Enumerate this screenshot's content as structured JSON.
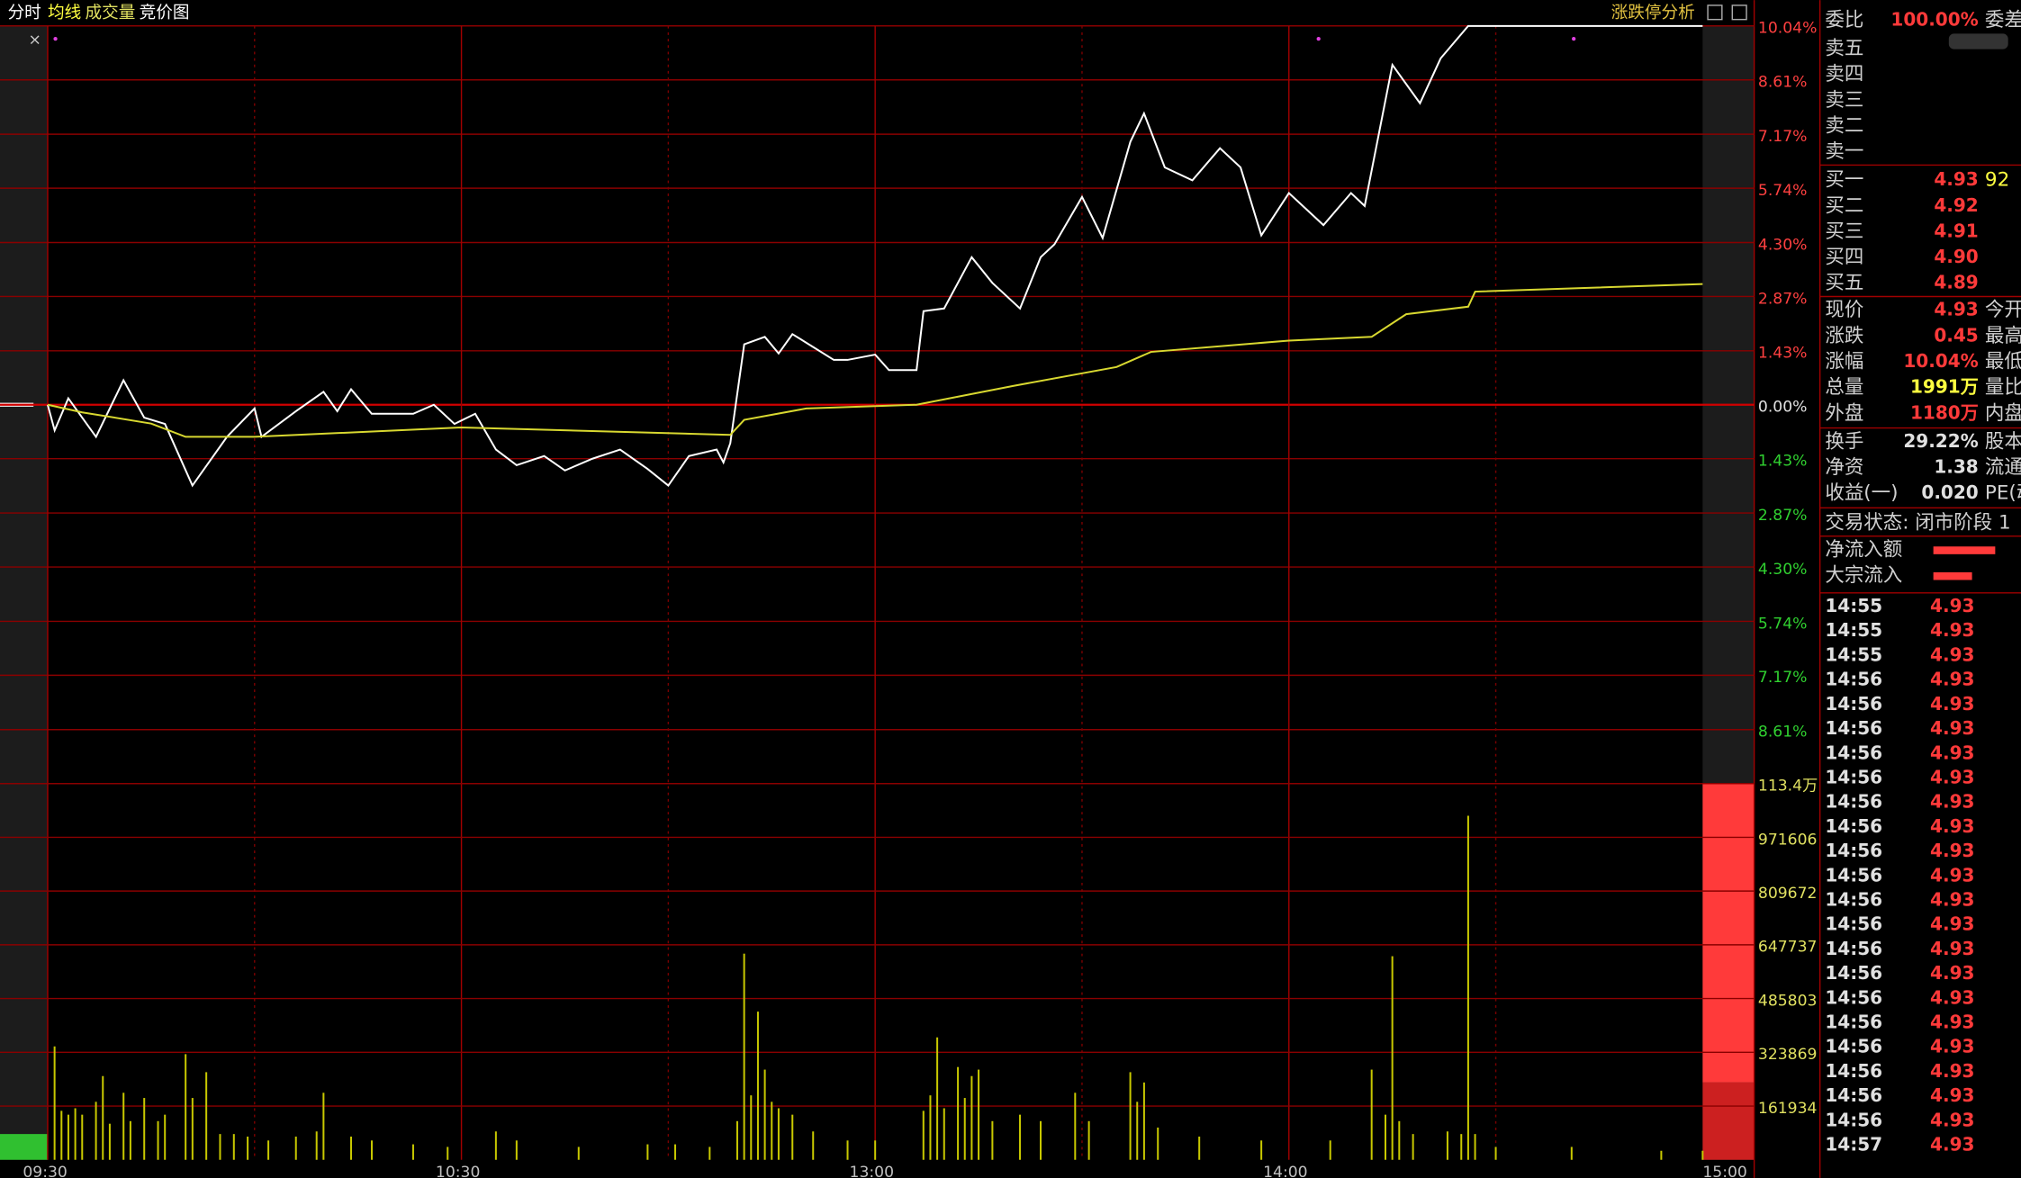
{
  "header": {
    "tabs": [
      "分时",
      "均线",
      "成交量",
      "竞价图"
    ],
    "close": "×",
    "analysis": "涨跌停分析"
  },
  "chart_data": [
    {
      "type": "line",
      "xlim": [
        0,
        240
      ],
      "xticks": [
        {
          "value": 0,
          "label": "09:30"
        },
        {
          "value": 60,
          "label": "10:30"
        },
        {
          "value": 120,
          "label": "13:00"
        },
        {
          "value": 180,
          "label": "14:00"
        },
        {
          "value": 240,
          "label": "15:00"
        }
      ],
      "ylim": [
        -10.04,
        10.04
      ],
      "yticks": [
        {
          "value": 10.04,
          "label": "10.04%"
        },
        {
          "value": 8.61,
          "label": "8.61%"
        },
        {
          "value": 7.17,
          "label": "7.17%"
        },
        {
          "value": 5.74,
          "label": "5.74%"
        },
        {
          "value": 4.3,
          "label": "4.30%"
        },
        {
          "value": 2.87,
          "label": "2.87%"
        },
        {
          "value": 1.43,
          "label": "1.43%"
        },
        {
          "value": 0,
          "label": "0.00%"
        },
        {
          "value": -1.43,
          "label": "1.43%"
        },
        {
          "value": -2.87,
          "label": "2.87%"
        },
        {
          "value": -4.3,
          "label": "4.30%"
        },
        {
          "value": -5.74,
          "label": "5.74%"
        },
        {
          "value": -7.17,
          "label": "7.17%"
        },
        {
          "value": -8.61,
          "label": "8.61%"
        }
      ],
      "grid": true,
      "series": [
        {
          "color": "#ffffff",
          "x": [
            0,
            1,
            3,
            7,
            11,
            14,
            17,
            21,
            26,
            30,
            31,
            36,
            40,
            42,
            44,
            47,
            53,
            56,
            59,
            62,
            65,
            68,
            72,
            75,
            79,
            83,
            87,
            90,
            93,
            97,
            98,
            99,
            101,
            104,
            106,
            108,
            111,
            114,
            116,
            120,
            122,
            126,
            127,
            130,
            134,
            137,
            141,
            144,
            146,
            150,
            153,
            157,
            159,
            162,
            166,
            170,
            173,
            176,
            180,
            185,
            189,
            191,
            195,
            199,
            202,
            206,
            240
          ],
          "values": [
            0,
            -0.68,
            0.17,
            -0.85,
            0.65,
            -0.34,
            -0.51,
            -2.14,
            -0.85,
            -0.1,
            -0.85,
            -0.17,
            0.34,
            -0.17,
            0.41,
            -0.24,
            -0.24,
            0,
            -0.51,
            -0.24,
            -1.19,
            -1.6,
            -1.36,
            -1.74,
            -1.43,
            -1.19,
            -1.7,
            -2.14,
            -1.36,
            -1.19,
            -1.53,
            -1.02,
            1.6,
            1.8,
            1.36,
            1.87,
            1.53,
            1.19,
            1.19,
            1.33,
            0.92,
            0.92,
            2.48,
            2.55,
            3.91,
            3.23,
            2.55,
            3.91,
            4.25,
            5.51,
            4.42,
            6.97,
            7.72,
            6.29,
            5.95,
            6.8,
            6.29,
            4.49,
            5.61,
            4.76,
            5.61,
            5.27,
            9.01,
            7.99,
            9.18,
            10.04,
            10.04
          ]
        },
        {
          "color": "#d8d830",
          "x": [
            0,
            5,
            15,
            20,
            30,
            60,
            99,
            101,
            110,
            126,
            140,
            155,
            160,
            180,
            192,
            197,
            206,
            207,
            240
          ],
          "values": [
            0,
            -0.2,
            -0.5,
            -0.85,
            -0.85,
            -0.6,
            -0.8,
            -0.4,
            -0.1,
            0,
            0.5,
            1.0,
            1.4,
            1.7,
            1.8,
            2.4,
            2.6,
            3.0,
            3.2
          ]
        }
      ]
    },
    {
      "type": "bar",
      "xlim": [
        0,
        240
      ],
      "ylim": [
        0,
        1133538
      ],
      "yticks": [
        161934,
        323869,
        485803,
        647737,
        809672,
        971606,
        {
          "value": 1133538,
          "label": "113.4万"
        }
      ],
      "grid": true,
      "color": "#c8c800",
      "x": [
        1,
        2,
        3,
        4,
        5,
        7,
        8,
        9,
        11,
        12,
        14,
        16,
        17,
        20,
        21,
        23,
        25,
        27,
        29,
        32,
        36,
        39,
        40,
        44,
        47,
        53,
        58,
        65,
        68,
        77,
        87,
        91,
        96,
        100,
        101,
        102,
        103,
        104,
        105,
        106,
        108,
        111,
        116,
        120,
        127,
        128,
        129,
        130,
        132,
        133,
        134,
        135,
        137,
        141,
        144,
        149,
        151,
        157,
        158,
        159,
        161,
        167,
        176,
        186,
        192,
        194,
        195,
        196,
        198,
        203,
        205,
        206,
        207,
        210,
        221,
        234,
        240
      ],
      "values": [
        341600,
        147500,
        135900,
        155300,
        135900,
        174700,
        252300,
        108700,
        201900,
        116500,
        186300,
        116500,
        135900,
        318300,
        186300,
        264000,
        77600,
        77600,
        69900,
        58200,
        69900,
        85400,
        201900,
        69900,
        58200,
        46600,
        38800,
        85400,
        58200,
        38800,
        46600,
        46600,
        38800,
        116500,
        621100,
        194100,
        446400,
        271700,
        174700,
        155300,
        135900,
        85400,
        58200,
        58200,
        147500,
        194100,
        368800,
        155300,
        279500,
        186300,
        252300,
        271700,
        116500,
        135900,
        116500,
        201900,
        116500,
        264000,
        174700,
        232900,
        97100,
        69900,
        58200,
        58200,
        271700,
        135900,
        613400,
        116500,
        77600,
        85400,
        77600,
        1036500,
        77600,
        38800,
        38800,
        27200,
        27200
      ]
    }
  ],
  "panel": {
    "rows": [
      [
        "委比",
        "100.00%",
        "委差"
      ],
      [
        "卖五"
      ],
      [
        "卖四"
      ],
      [
        "卖三"
      ],
      [
        "卖二"
      ],
      [
        "卖一"
      ],
      [
        "买一",
        "4.93",
        "92"
      ],
      [
        "买二",
        "4.92"
      ],
      [
        "买三",
        "4.91"
      ],
      [
        "买四",
        "4.90"
      ],
      [
        "买五",
        "4.89"
      ],
      [
        "现价",
        "4.93",
        "今开"
      ],
      [
        "涨跌",
        "0.45",
        "最高"
      ],
      [
        "涨幅",
        "10.04%",
        "最低"
      ],
      [
        "总量",
        "1991万",
        "量比"
      ],
      [
        "外盘",
        "1180万",
        "内盘"
      ],
      [
        "换手",
        "29.22%",
        "股本"
      ],
      [
        "净资",
        "1.38",
        "流通"
      ],
      [
        "收益(一)",
        "0.020",
        "PE(动)"
      ]
    ],
    "status": "交易状态: 闭市阶段 1",
    "flows": [
      "净流入额",
      "大宗流入"
    ],
    "trades": [
      [
        "14:55",
        "4.93"
      ],
      [
        "14:55",
        "4.93"
      ],
      [
        "14:55",
        "4.93"
      ],
      [
        "14:56",
        "4.93"
      ],
      [
        "14:56",
        "4.93"
      ],
      [
        "14:56",
        "4.93"
      ],
      [
        "14:56",
        "4.93"
      ],
      [
        "14:56",
        "4.93"
      ],
      [
        "14:56",
        "4.93"
      ],
      [
        "14:56",
        "4.93"
      ],
      [
        "14:56",
        "4.93"
      ],
      [
        "14:56",
        "4.93"
      ],
      [
        "14:56",
        "4.93"
      ],
      [
        "14:56",
        "4.93"
      ],
      [
        "14:56",
        "4.93"
      ],
      [
        "14:56",
        "4.93"
      ],
      [
        "14:56",
        "4.93"
      ],
      [
        "14:56",
        "4.93"
      ],
      [
        "14:56",
        "4.93"
      ],
      [
        "14:56",
        "4.93"
      ],
      [
        "14:56",
        "4.93"
      ],
      [
        "14:56",
        "4.93"
      ],
      [
        "14:57",
        "4.93"
      ]
    ]
  }
}
